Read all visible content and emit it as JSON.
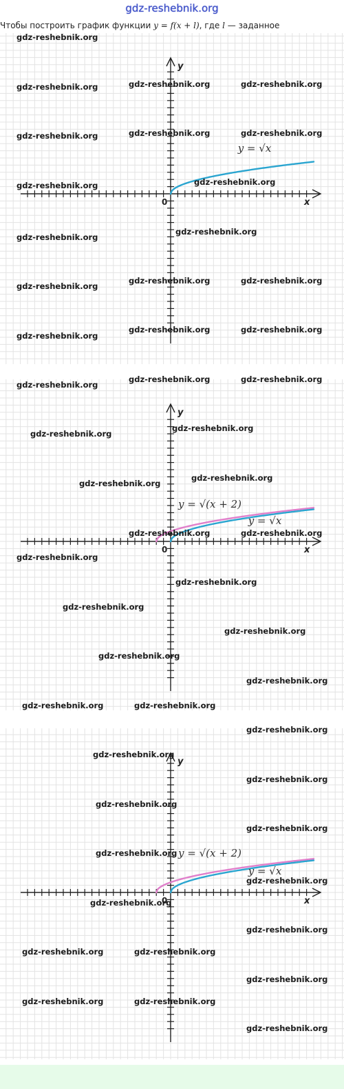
{
  "header": {
    "site": "gdz-reshebnik.org"
  },
  "intro": {
    "text_before": "Чтобы построить график функции",
    "formula": "y = f(x + l)",
    "text_after": ", где",
    "var": "l",
    "text_end": " — заданное"
  },
  "watermark": "gdz-reshebnik.org",
  "colors": {
    "sqrt_x": "#2aa5d0",
    "sqrt_x_plus_2": "#e07fcb",
    "axis": "#222222",
    "grid": "#e3e3e3"
  },
  "chart_data": [
    {
      "type": "line",
      "xlabel": "x",
      "ylabel": "y",
      "origin_label": "0",
      "xlim": [
        -20,
        20
      ],
      "ylim": [
        -19,
        19
      ],
      "grid": true,
      "series": [
        {
          "name": "y = √x",
          "label": "y = √x",
          "x": [
            0,
            1,
            4,
            9,
            16,
            20
          ],
          "y": [
            0,
            1,
            2,
            3,
            4,
            4.47
          ]
        }
      ]
    },
    {
      "type": "line",
      "xlabel": "x",
      "ylabel": "y",
      "origin_label": "0",
      "xlim": [
        -20,
        20
      ],
      "ylim": [
        -19,
        19
      ],
      "grid": true,
      "series": [
        {
          "name": "y = √(x+2)",
          "label": "y = √(x + 2)",
          "x": [
            -2,
            -1,
            2,
            7,
            14,
            20
          ],
          "y": [
            0,
            1,
            2,
            3,
            4,
            4.69
          ]
        },
        {
          "name": "y = √x",
          "label": "y = √x",
          "x": [
            0,
            1,
            4,
            9,
            16,
            20
          ],
          "y": [
            0,
            1,
            2,
            3,
            4,
            4.47
          ]
        }
      ]
    },
    {
      "type": "line",
      "xlabel": "x",
      "ylabel": "y",
      "origin_label": "0",
      "xlim": [
        -20,
        20
      ],
      "ylim": [
        -19,
        19
      ],
      "grid": true,
      "series": [
        {
          "name": "y = √(x+2)",
          "label": "y = √(x + 2)",
          "x": [
            -2,
            -1,
            2,
            7,
            14,
            20
          ],
          "y": [
            0,
            1,
            2,
            3,
            4,
            4.69
          ]
        },
        {
          "name": "y = √x",
          "label": "y = √x",
          "x": [
            0,
            1,
            4,
            9,
            16,
            20
          ],
          "y": [
            0,
            1,
            2,
            3,
            4,
            4.47
          ]
        }
      ]
    }
  ]
}
